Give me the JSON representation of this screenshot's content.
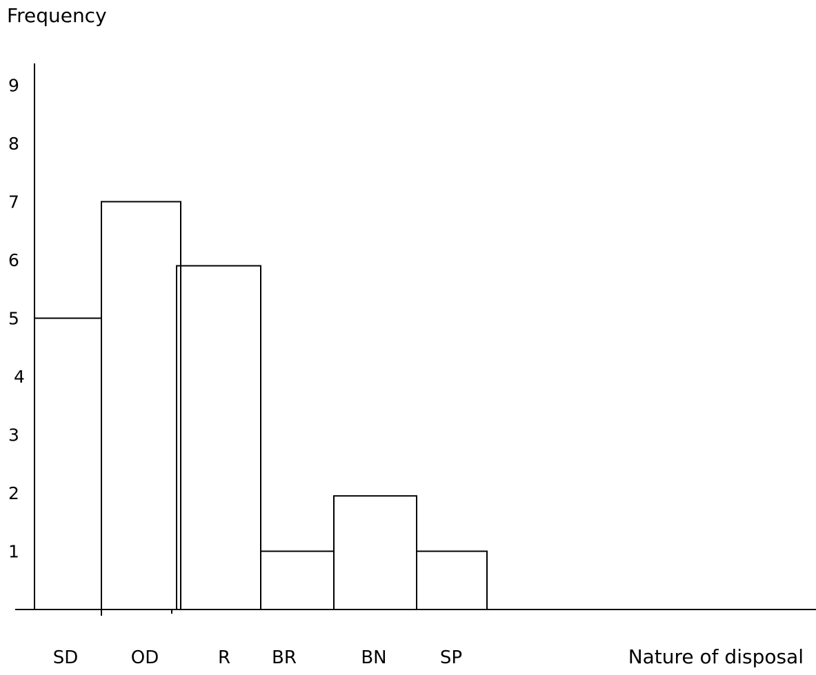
{
  "chart_data": {
    "type": "bar",
    "title": "",
    "ylabel": "Frequency",
    "xlabel": "Nature of disposal",
    "categories": [
      "SD",
      "OD",
      "R",
      "BR",
      "BN",
      "SP"
    ],
    "values": [
      5,
      7,
      5.9,
      1,
      1.95,
      1
    ],
    "y_ticks": [
      "1",
      "2",
      "3",
      "4",
      "5",
      "6",
      "7",
      "8",
      "9"
    ],
    "ylim": [
      0,
      9
    ],
    "grid": false,
    "legend": "none"
  }
}
